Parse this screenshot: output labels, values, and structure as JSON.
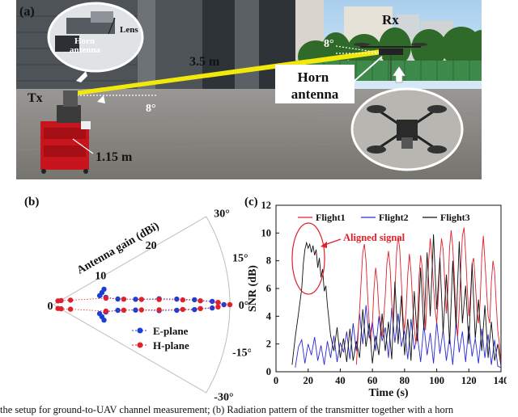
{
  "panel_a": {
    "label": "(a)",
    "labels": {
      "lens": "Lens",
      "horn_inset": "Horn\nantenna",
      "rx": "Rx",
      "tx": "Tx",
      "distance": "3.5 m",
      "angle_rx": "8°",
      "angle_tx": "8°",
      "horn_antenna": "Horn\nantenna",
      "height": "1.15 m"
    },
    "colors": {
      "beam": "#f2e80c",
      "sky": "#b9d8ee",
      "ground": "#8c8a86"
    }
  },
  "chart_data": [
    {
      "type": "scatter",
      "panel_label": "(b)",
      "polar": true,
      "axis_label": "Antenna gain (dBi)",
      "radial_ticks": [
        "0",
        "10",
        "20"
      ],
      "angle_ticks": [
        "30°",
        "15°",
        "0°",
        "-15°",
        "-30°"
      ],
      "theta_range_deg": [
        -30,
        30
      ],
      "r_range": [
        0,
        30
      ],
      "series": [
        {
          "name": "E-plane",
          "color": "#1a3fd6",
          "points": [
            {
              "theta": 0,
              "r": 29
            },
            {
              "theta": 1.2,
              "r": 27
            },
            {
              "theta": -1.2,
              "r": 27
            },
            {
              "theta": 2,
              "r": 24
            },
            {
              "theta": -2,
              "r": 24
            },
            {
              "theta": 2.6,
              "r": 21
            },
            {
              "theta": -2.6,
              "r": 21
            },
            {
              "theta": 3.2,
              "r": 18
            },
            {
              "theta": -3.2,
              "r": 18
            },
            {
              "theta": 3.8,
              "r": 14
            },
            {
              "theta": -3.8,
              "r": 14
            },
            {
              "theta": 5,
              "r": 11
            },
            {
              "theta": -5,
              "r": 11
            },
            {
              "theta": 8,
              "r": 9
            },
            {
              "theta": -8,
              "r": 9
            },
            {
              "theta": 11,
              "r": 8
            },
            {
              "theta": -11,
              "r": 8
            },
            {
              "theta": 14,
              "r": 8.5
            },
            {
              "theta": -14,
              "r": 8.5
            },
            {
              "theta": 17,
              "r": 9
            },
            {
              "theta": -17,
              "r": 9
            }
          ]
        },
        {
          "name": "H-plane",
          "color": "#e0202a",
          "points": [
            {
              "theta": 0,
              "r": 30
            },
            {
              "theta": 0.8,
              "r": 28
            },
            {
              "theta": -0.8,
              "r": 28
            },
            {
              "theta": 1.5,
              "r": 25
            },
            {
              "theta": -1.5,
              "r": 25
            },
            {
              "theta": 2.1,
              "r": 22
            },
            {
              "theta": -2.1,
              "r": 22
            },
            {
              "theta": 2.8,
              "r": 18
            },
            {
              "theta": -2.8,
              "r": 18
            },
            {
              "theta": 3.4,
              "r": 15
            },
            {
              "theta": -3.4,
              "r": 15
            },
            {
              "theta": 4.5,
              "r": 12
            },
            {
              "theta": -4.5,
              "r": 12
            },
            {
              "theta": 7,
              "r": 9
            },
            {
              "theta": -7,
              "r": 9
            },
            {
              "theta": 15,
              "r": 3
            },
            {
              "theta": -15,
              "r": 3
            },
            {
              "theta": 28,
              "r": 1.5
            },
            {
              "theta": -28,
              "r": 1.5
            },
            {
              "theta": 40,
              "r": 1
            },
            {
              "theta": -40,
              "r": 1
            }
          ]
        }
      ]
    },
    {
      "type": "line",
      "panel_label": "(c)",
      "xlabel": "Time (s)",
      "ylabel": "SNR (dB)",
      "xlim": [
        0,
        140
      ],
      "ylim": [
        0,
        12
      ],
      "xticks": [
        "0",
        "20",
        "40",
        "60",
        "80",
        "100",
        "120",
        "140"
      ],
      "yticks": [
        "0",
        "2",
        "4",
        "6",
        "8",
        "10",
        "12"
      ],
      "annotation": "Aligned signal",
      "annotation_color": "#e0202a",
      "legend_position": "top",
      "series": [
        {
          "name": "Flight1",
          "color": "#e0202a",
          "x": [
            50,
            51,
            52,
            53,
            54,
            55,
            56,
            57,
            58,
            59,
            60,
            61,
            62,
            63,
            64,
            65,
            66,
            67,
            68,
            69,
            70,
            71,
            72,
            73,
            74,
            75,
            76,
            77,
            78,
            79,
            80,
            81,
            82,
            83,
            84,
            85,
            86,
            87,
            88,
            89,
            90,
            91,
            92,
            93,
            94,
            95,
            96,
            97,
            98,
            99,
            100,
            101,
            102,
            103,
            104,
            105,
            106,
            107,
            108,
            109,
            110,
            111,
            112,
            113,
            114,
            115,
            116,
            117,
            118,
            119,
            120,
            121,
            122,
            123,
            124,
            125,
            126,
            127,
            128,
            129,
            130,
            131,
            132,
            133,
            134,
            135,
            136,
            137,
            138,
            139,
            140
          ],
          "y": [
            0.5,
            2.5,
            4.5,
            6.5,
            8.6,
            9.2,
            8.0,
            5.5,
            3.5,
            2.0,
            3.5,
            6.0,
            7.5,
            6.5,
            4.5,
            3.5,
            2.5,
            3.8,
            5.5,
            7.8,
            8.7,
            7.5,
            5.0,
            3.5,
            5.8,
            8.5,
            9.8,
            8.8,
            6.5,
            4.0,
            3.0,
            4.5,
            7.0,
            8.5,
            7.2,
            5.0,
            3.2,
            2.0,
            3.5,
            6.8,
            8.4,
            7.5,
            5.5,
            3.0,
            5.5,
            8.0,
            9.6,
            8.2,
            6.2,
            4.5,
            3.5,
            5.5,
            8.2,
            9.6,
            8.8,
            6.5,
            4.2,
            6.0,
            9.0,
            10.2,
            9.0,
            6.8,
            4.0,
            2.5,
            4.5,
            7.5,
            9.8,
            10.4,
            8.5,
            6.0,
            4.0,
            5.5,
            7.8,
            8.2,
            6.5,
            4.5,
            3.5,
            5.0,
            8.2,
            9.8,
            8.0,
            6.0,
            4.0,
            3.5,
            6.5,
            8.0,
            7.2,
            5.0,
            3.0,
            2.0,
            0.5
          ]
        },
        {
          "name": "Flight2",
          "color": "#2a2ad8",
          "x": [
            12,
            14,
            16,
            18,
            20,
            22,
            24,
            26,
            28,
            30,
            32,
            34,
            36,
            38,
            40,
            42,
            44,
            46,
            48,
            50,
            52,
            54,
            56,
            58,
            60,
            62,
            64,
            66,
            68,
            70,
            72,
            74,
            76,
            78,
            80,
            82,
            84,
            86,
            88,
            90,
            92,
            94,
            96,
            98,
            100,
            102,
            104,
            106,
            108,
            110,
            112,
            114,
            116,
            118,
            120,
            122,
            124,
            126,
            128,
            130,
            132,
            134,
            136,
            138,
            140
          ],
          "y": [
            0.3,
            1.8,
            2.3,
            0.6,
            2.0,
            1.2,
            2.5,
            0.8,
            1.9,
            0.5,
            2.2,
            1.0,
            2.6,
            0.7,
            2.1,
            1.4,
            2.9,
            0.9,
            3.5,
            1.5,
            4.2,
            2.0,
            4.8,
            2.4,
            3.6,
            1.5,
            4.0,
            2.2,
            3.2,
            1.0,
            4.6,
            2.1,
            4.2,
            1.8,
            3.0,
            0.9,
            3.8,
            1.6,
            2.6,
            0.7,
            3.4,
            1.2,
            2.8,
            0.6,
            3.6,
            1.3,
            3.0,
            0.8,
            2.5,
            0.5,
            3.5,
            1.4,
            2.9,
            0.7,
            3.3,
            1.1,
            2.4,
            0.6,
            3.1,
            1.0,
            2.7,
            0.5,
            2.3,
            0.4,
            0.3
          ]
        },
        {
          "name": "Flight3",
          "color": "#111111",
          "x": [
            10,
            12,
            14,
            16,
            17,
            18,
            19,
            20,
            21,
            22,
            23,
            24,
            25,
            26,
            27,
            28,
            29,
            30,
            31,
            32,
            34,
            36,
            38,
            40,
            42,
            44,
            46,
            48,
            50,
            52,
            54,
            56,
            58,
            60,
            62,
            64,
            66,
            68,
            70,
            72,
            74,
            76,
            78,
            80,
            82,
            84,
            86,
            88,
            90,
            92,
            94,
            96,
            98,
            100,
            102,
            104,
            106,
            108,
            110,
            112,
            114,
            116,
            118,
            120,
            122,
            124,
            126,
            128,
            130,
            132,
            134,
            136,
            138,
            140
          ],
          "y": [
            0.5,
            2.5,
            4.2,
            6.0,
            7.8,
            8.8,
            9.3,
            8.9,
            9.2,
            8.6,
            9.1,
            8.4,
            8.8,
            7.5,
            8.2,
            6.8,
            7.4,
            5.8,
            6.2,
            4.8,
            2.6,
            1.5,
            3.2,
            1.0,
            2.4,
            0.7,
            3.1,
            0.8,
            2.2,
            1.0,
            4.5,
            1.8,
            3.5,
            0.6,
            2.6,
            1.2,
            4.2,
            1.5,
            3.6,
            0.9,
            6.5,
            2.0,
            5.5,
            1.2,
            3.8,
            0.8,
            5.8,
            2.2,
            7.5,
            3.0,
            8.6,
            4.0,
            9.9,
            4.5,
            8.2,
            2.8,
            7.0,
            2.0,
            8.0,
            3.2,
            9.4,
            3.5,
            6.2,
            2.0,
            7.8,
            2.4,
            5.2,
            1.5,
            4.8,
            1.0,
            3.6,
            0.8,
            2.0,
            0.4
          ]
        }
      ]
    }
  ],
  "caption": "the setup for ground-to-UAV channel measurement; (b) Radiation pattern of the transmitter together with a horn"
}
